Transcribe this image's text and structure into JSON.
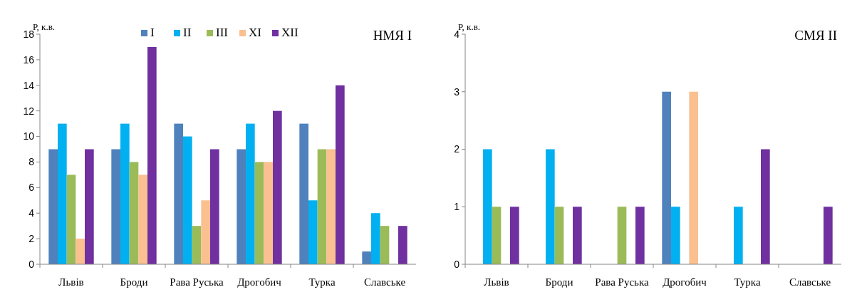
{
  "chart_data": [
    {
      "type": "bar",
      "title": "НМЯ I",
      "ylabel": "Р, к.в.",
      "categories": [
        "Львів",
        "Броди",
        "Рава Руська",
        "Дрогобич",
        "Турка",
        "Славське"
      ],
      "series": [
        {
          "name": "I",
          "color": "#4f81bd",
          "values": [
            9,
            9,
            11,
            9,
            11,
            1
          ]
        },
        {
          "name": "II",
          "color": "#00b0f0",
          "values": [
            11,
            11,
            10,
            11,
            5,
            4
          ]
        },
        {
          "name": "III",
          "color": "#9bbb59",
          "values": [
            7,
            8,
            3,
            8,
            9,
            3
          ]
        },
        {
          "name": "XI",
          "color": "#fac090",
          "values": [
            2,
            7,
            5,
            8,
            9,
            0
          ]
        },
        {
          "name": "XII",
          "color": "#7030a0",
          "values": [
            9,
            17,
            9,
            12,
            14,
            3
          ]
        }
      ],
      "ylim": [
        0,
        18
      ],
      "yticks": [
        0,
        2,
        4,
        6,
        8,
        10,
        12,
        14,
        16,
        18
      ],
      "legend": "top"
    },
    {
      "type": "bar",
      "title": "СМЯ II",
      "ylabel": "Р, к.в.",
      "categories": [
        "Львів",
        "Броди",
        "Рава Руська",
        "Дрогобич",
        "Турка",
        "Славське"
      ],
      "series": [
        {
          "color": "#4f81bd",
          "values": [
            0,
            0,
            0,
            3,
            0,
            0
          ]
        },
        {
          "color": "#00b0f0",
          "values": [
            2,
            2,
            0,
            1,
            1,
            0
          ]
        },
        {
          "color": "#9bbb59",
          "values": [
            1,
            1,
            1,
            0,
            0,
            0
          ]
        },
        {
          "color": "#fac090",
          "values": [
            0,
            0,
            0,
            3,
            0,
            0
          ]
        },
        {
          "color": "#7030a0",
          "values": [
            1,
            1,
            1,
            0,
            2,
            1
          ]
        }
      ],
      "ylim": [
        0,
        4
      ],
      "yticks": [
        0,
        1,
        2,
        3,
        4
      ]
    }
  ]
}
